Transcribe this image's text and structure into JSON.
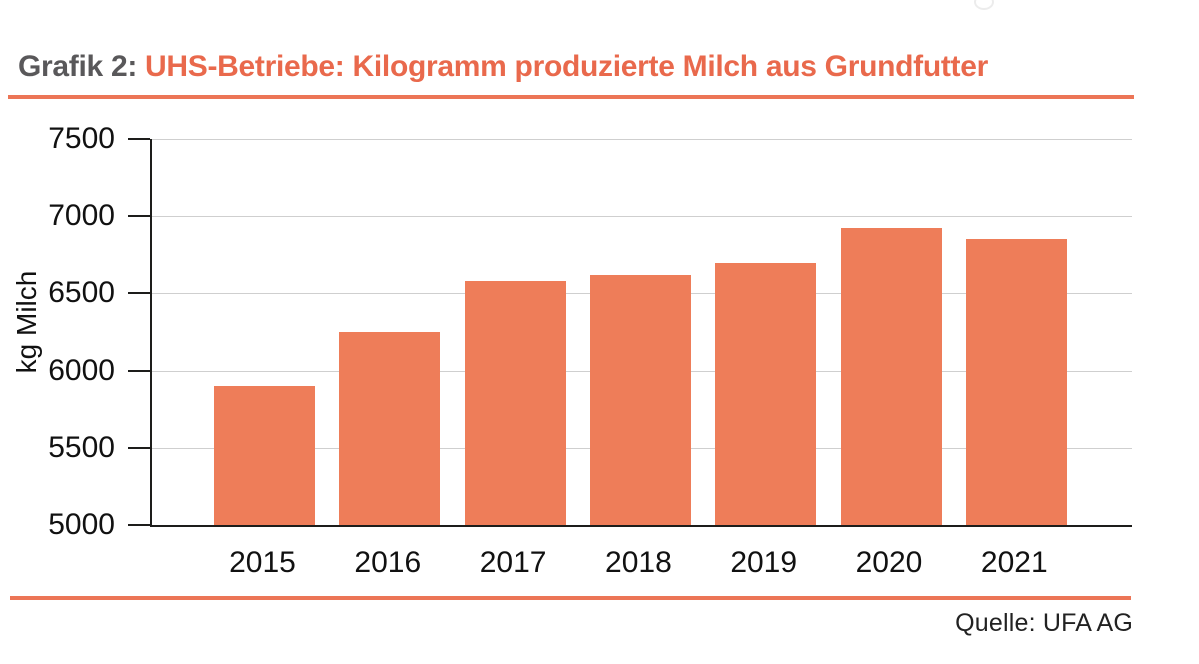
{
  "header": {
    "prefix": "Grafik 2:",
    "title": "UHS-Betriebe: Kilogramm produzierte Milch aus Grundfutter",
    "prefix_color": "#59585a",
    "accent_color": "#e9694c"
  },
  "chart_data": {
    "type": "bar",
    "title": "Grafik 2: UHS-Betriebe: Kilogramm produzierte Milch aus Grundfutter",
    "categories": [
      "2015",
      "2016",
      "2017",
      "2018",
      "2019",
      "2020",
      "2021"
    ],
    "values": [
      5900,
      6250,
      6580,
      6620,
      6700,
      6925,
      6850
    ],
    "xlabel": "",
    "ylabel": "kg Milch",
    "ylim": [
      5000,
      7500
    ],
    "yticks": [
      5000,
      5500,
      6000,
      6500,
      7000,
      7500
    ],
    "grid": true,
    "legend_position": "none",
    "bar_color": "#ee7d59",
    "gridline_color": "#cfcfcf",
    "axis_color": "#1d1d1b"
  },
  "footer": {
    "source": "Quelle: UFA AG",
    "rule_color": "#ec7556"
  }
}
